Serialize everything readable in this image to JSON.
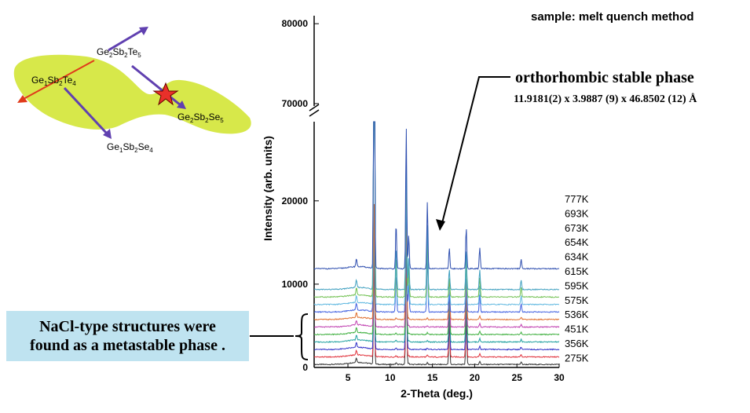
{
  "sample_label": "sample: melt quench method",
  "phase_annotation": {
    "title": "orthorhombic stable phase",
    "lattice": "11.9181(2) x  3.9887 (9) x 46.8502 (12) Å"
  },
  "callout": {
    "line1": "NaCl-type structures were",
    "line2": "found as a metastable phase ."
  },
  "ternary_diagram": {
    "colors": {
      "region": "#d7e84a",
      "arrow_blue": "#6040b0",
      "arrow_red": "#e03a1a",
      "star": "#e8302a"
    },
    "compounds": [
      {
        "id": "gst225",
        "base": "Ge",
        "n1": "2",
        "mid": "Sb",
        "n2": "2",
        "end": "Te",
        "n3": "5"
      },
      {
        "id": "gst124",
        "base": "Ge",
        "n1": "1",
        "mid": "Sb",
        "n2": "2",
        "end": "Te",
        "n3": "4"
      },
      {
        "id": "gss225",
        "base": "Ge",
        "n1": "2",
        "mid": "Sb",
        "n2": "2",
        "end": "Se",
        "n3": "5"
      },
      {
        "id": "gss124",
        "base": "Ge",
        "n1": "1",
        "mid": "Sb",
        "n2": "2",
        "end": "Se",
        "n3": "4"
      }
    ]
  },
  "chart_data": {
    "type": "line",
    "xlabel": "2-Theta (deg.)",
    "ylabel": "Intensity  (arb. units)",
    "xlim": [
      1,
      30
    ],
    "x_ticks": [
      5,
      10,
      15,
      20,
      25,
      30
    ],
    "y_ticks_lower": [
      0,
      10000,
      20000
    ],
    "y_ticks_upper": [
      70000,
      80000
    ],
    "ylim_lower": [
      0,
      29500
    ],
    "ylim_upper": [
      69700,
      81000
    ],
    "axis_break": true,
    "grid": false,
    "series": [
      {
        "name": "275K",
        "offset": 0,
        "color": "#333333"
      },
      {
        "name": "356K",
        "offset": 900,
        "color": "#e0303a"
      },
      {
        "name": "451K",
        "offset": 1800,
        "color": "#3030c8"
      },
      {
        "name": "536K",
        "offset": 2700,
        "color": "#20a0a0"
      },
      {
        "name": "575K",
        "offset": 3600,
        "color": "#40b040"
      },
      {
        "name": "595K",
        "offset": 4500,
        "color": "#c040b0"
      },
      {
        "name": "615K",
        "offset": 5400,
        "color": "#e07030"
      },
      {
        "name": "634K",
        "offset": 6300,
        "color": "#4060e0"
      },
      {
        "name": "654K",
        "offset": 7200,
        "color": "#60b8e0"
      },
      {
        "name": "673K",
        "offset": 8100,
        "color": "#70c050"
      },
      {
        "name": "693K",
        "offset": 9000,
        "color": "#40a0c0"
      },
      {
        "name": "777K",
        "offset": 11500,
        "color": "#3050b0"
      }
    ],
    "peaks": [
      {
        "x": 8.1,
        "h_meta": 14000,
        "h_stable": 60000
      },
      {
        "x": 11.9,
        "h_meta": 13500,
        "h_stable": 17000
      },
      {
        "x": 17.0,
        "h_meta": 5000,
        "h_stable": 2500
      },
      {
        "x": 19.0,
        "h_meta": 5200,
        "h_stable": 5000
      },
      {
        "x": 14.4,
        "h_meta": 200,
        "h_stable": 8000
      },
      {
        "x": 10.7,
        "h_meta": 200,
        "h_stable": 5500
      },
      {
        "x": 12.2,
        "h_meta": 200,
        "h_stable": 4000
      },
      {
        "x": 20.6,
        "h_meta": 400,
        "h_stable": 2500
      },
      {
        "x": 6.0,
        "h_meta": 600,
        "h_stable": 1000
      },
      {
        "x": 25.5,
        "h_meta": 300,
        "h_stable": 1200
      }
    ]
  }
}
